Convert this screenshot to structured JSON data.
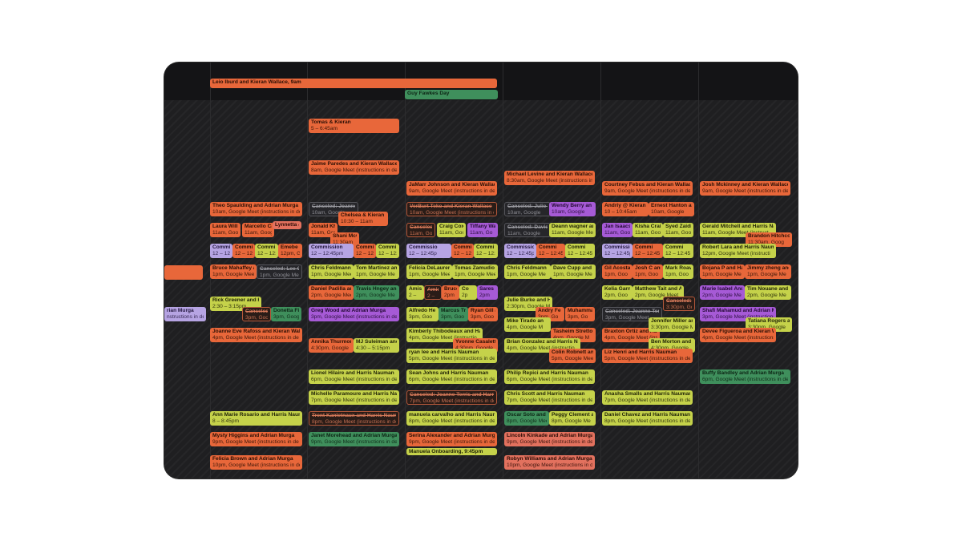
{
  "allday_events": [
    {
      "title": "Leio Iburd and Kieran Wallace, 9am",
      "color": "orange"
    },
    {
      "title": "Guy Fawkes Day",
      "color": "green"
    }
  ],
  "events": [
    {
      "title": "Tomas & Kieran",
      "sub": "5 – 6:45am",
      "color": "orange"
    },
    {
      "title": "Jaime Paredes and Kieran Wallace",
      "sub": "8am, Google Meet (instructions in de",
      "color": "orange"
    },
    {
      "title": "JaMarr Johnson and Kieran Wallace",
      "sub": "9am, Google Meet (instructions in de",
      "color": "orange"
    },
    {
      "title": "Michael Levine and Kieran Wallace",
      "sub": "8:30am, Google Meet (instructions in de",
      "color": "orange"
    },
    {
      "title": "Courtney Febus and Kieran Wallace",
      "sub": "9am, Google Meet (instructions in de",
      "color": "orange"
    },
    {
      "title": "Josh Mckinney and Kieran Wallace",
      "sub": "9am, Google Meet (instructions in de",
      "color": "orange"
    },
    {
      "title": "Theo Spaulding and Adrian Murga",
      "sub": "10am, Google Meet (instructions in de",
      "color": "orange"
    },
    {
      "title": "Canceled: Joanne T",
      "sub": "10am, Google",
      "color": "cancel"
    },
    {
      "title": "Chelsea & Kieran (I",
      "sub": "10:30 – 11am",
      "color": "orange"
    },
    {
      "title": "VerBurt Teko and Kieran Wallace",
      "sub": "10am, Google Meet (instructions in de",
      "color": "cancel-o"
    },
    {
      "title": "Canceled: Julie B",
      "sub": "10am, Google",
      "color": "cancel"
    },
    {
      "title": "Wendy Berry an",
      "sub": "10am, Google",
      "color": "purple"
    },
    {
      "title": "Andriy @ Kieran",
      "sub": "10 – 10:45am",
      "color": "orange"
    },
    {
      "title": "Ernest Hanton an",
      "sub": "10am, Google",
      "color": "orange"
    },
    {
      "title": "Laura Willi",
      "sub": "11am, Goog",
      "color": "orange"
    },
    {
      "title": "Marcello Ca",
      "sub": "11am, Goog",
      "color": "orange"
    },
    {
      "title": "Lynnetta &",
      "sub": "",
      "color": "coral"
    },
    {
      "title": "Jonald Kha",
      "sub": "11am, Goog",
      "color": "orange"
    },
    {
      "title": "Shani McGo",
      "sub": "11:30am",
      "color": "orange"
    },
    {
      "title": "Canceled: ",
      "sub": "11am, Goog",
      "color": "cancel-o"
    },
    {
      "title": "Craig Cox",
      "sub": "11am, Goo",
      "color": "lime"
    },
    {
      "title": "Tiffany Wa",
      "sub": "11am, Go",
      "color": "purple"
    },
    {
      "title": "Canceled: David",
      "sub": "11am, Google",
      "color": "cancel"
    },
    {
      "title": "Deann wagner an",
      "sub": "11am, Google Me",
      "color": "lime"
    },
    {
      "title": "Jan Isaacs",
      "sub": "11am, Goo",
      "color": "purple"
    },
    {
      "title": "Kisha Craig",
      "sub": "11am, Goo",
      "color": "lime"
    },
    {
      "title": "Syed Zaidi",
      "sub": "11am, Goo",
      "color": "lime"
    },
    {
      "title": "Gerald Mitchell and Harris Na",
      "sub": "11am, Google Meet (instruct",
      "color": "lime"
    },
    {
      "title": "Brandon Hitchco",
      "sub": "11:30am, Goog",
      "color": "orange"
    },
    {
      "title": "Commission",
      "sub": "12 – 12:45",
      "color": "lav"
    },
    {
      "title": "Commi",
      "sub": "12 – 12:45",
      "color": "orange"
    },
    {
      "title": "Commi",
      "sub": "12 – 12:45",
      "color": "lime"
    },
    {
      "title": "Emebe",
      "sub": "12pm, G",
      "color": "orange"
    },
    {
      "title": "Commission",
      "sub": "12 – 12:45pm",
      "color": "lav"
    },
    {
      "title": "Commi",
      "sub": "12 – 12:45",
      "color": "orange"
    },
    {
      "title": "Commi",
      "sub": "12 – 12:45",
      "color": "lime"
    },
    {
      "title": "Commissio",
      "sub": "12 – 12:45p",
      "color": "lav"
    },
    {
      "title": "Commi",
      "sub": "12 – 12:45",
      "color": "orange"
    },
    {
      "title": "Commi",
      "sub": "12 – 12:45",
      "color": "lime"
    },
    {
      "title": "Commission",
      "sub": "12 – 12:45pm",
      "color": "lav"
    },
    {
      "title": "Commi",
      "sub": "12 – 12:45",
      "color": "orange"
    },
    {
      "title": "Commi",
      "sub": "12 – 12:45",
      "color": "lime"
    },
    {
      "title": "Commissio",
      "sub": "12 – 12:45p",
      "color": "lav"
    },
    {
      "title": "Commi",
      "sub": "12 – 12:45",
      "color": "orange"
    },
    {
      "title": "Commi",
      "sub": "12 – 12:45",
      "color": "lime"
    },
    {
      "title": "Robert Lara and Harris Nauma",
      "sub": "12pm, Google Meet (instructi",
      "color": "lime"
    },
    {
      "title": "Bruce Mahaffey an",
      "sub": "1pm, Google Meet",
      "color": "orange"
    },
    {
      "title": "Canceled: Lee Gu",
      "sub": "1pm, Google Me",
      "color": "cancel"
    },
    {
      "title": "Chris Feldmann a",
      "sub": "1pm, Google Meet",
      "color": "lime"
    },
    {
      "title": "Tom Martinez an",
      "sub": "1pm, Google Me",
      "color": "lime"
    },
    {
      "title": "Felicia DeLaurent",
      "sub": "1pm, Google Meet",
      "color": "lime"
    },
    {
      "title": "Tomas Zamudio and",
      "sub": "1pm, Google Meet (",
      "color": "lime"
    },
    {
      "title": "Chris Feldmann",
      "sub": "1pm, Google Me",
      "color": "lime"
    },
    {
      "title": "Dave Cupp and K",
      "sub": "1pm, Google Me",
      "color": "lime"
    },
    {
      "title": "Gil Acosta",
      "sub": "1pm, Goo",
      "color": "orange"
    },
    {
      "title": "Josh C and",
      "sub": "1pm, Goo",
      "color": "orange"
    },
    {
      "title": "Mark Roave",
      "sub": "1pm, Goo",
      "color": "lime"
    },
    {
      "title": "Bojana P and Ha",
      "sub": "1pm, Google Me",
      "color": "orange"
    },
    {
      "title": "Jimmy zheng and",
      "sub": "1pm, Google Me",
      "color": "orange"
    },
    {
      "title": "Daniel Padilla an",
      "sub": "2pm, Google Meet",
      "color": "orange"
    },
    {
      "title": "Travis Hngey an",
      "sub": "2pm, Google Me",
      "color": "green"
    },
    {
      "title": "Amiss",
      "sub": "2 –",
      "color": "lime"
    },
    {
      "title": "Amina",
      "sub": "2 –",
      "color": "cancel-o"
    },
    {
      "title": "Bruce",
      "sub": "2pm",
      "color": "orange"
    },
    {
      "title": "Co",
      "sub": "2p",
      "color": "lime"
    },
    {
      "title": "Sares",
      "sub": "2pm",
      "color": "purple"
    },
    {
      "title": "Kelia Garne",
      "sub": "2pm, Goo",
      "color": "lime"
    },
    {
      "title": "Matthew Tait and A",
      "sub": "2pm, Google Meet",
      "color": "lime"
    },
    {
      "title": "Marie Isabel And",
      "sub": "2pm, Google Me",
      "color": "purple"
    },
    {
      "title": "Tim Nouane and",
      "sub": "2pm, Google Me",
      "color": "lime"
    },
    {
      "title": "Rick Greener and H",
      "sub": "2:30 – 3:15pm",
      "color": "lime"
    },
    {
      "title": "Canceled:",
      "sub": "3pm, Goog",
      "color": "cancel-o"
    },
    {
      "title": "Donetta Fi",
      "sub": "3pm, Goog",
      "color": "green"
    },
    {
      "title": "Greg Wood and Adrian Murga",
      "sub": "3pm, Google Meet (instructions in de",
      "color": "purple"
    },
    {
      "title": "Alfredo He",
      "sub": "3pm, Goo",
      "color": "lime"
    },
    {
      "title": "Marcus Tri",
      "sub": "3pm, Goo",
      "color": "green"
    },
    {
      "title": "Ryan Gill a",
      "sub": "3pm, Goo",
      "color": "orange"
    },
    {
      "title": "Julie Burke and Har",
      "sub": "2:30pm, Google Me",
      "color": "lime"
    },
    {
      "title": "Andry Fe",
      "sub": "3pm, Go",
      "color": "orange"
    },
    {
      "title": "Muhamma",
      "sub": "3pm, Go",
      "color": "orange"
    },
    {
      "title": "Canceled: Joanne Terra",
      "sub": "3pm, Google Meet",
      "color": "cancel"
    },
    {
      "title": "Canceled:",
      "sub": "3:30pm, Go",
      "color": "cancel-o"
    },
    {
      "title": "Shafi Mahamud and Adrian Murga",
      "sub": "3pm, Google Meet (instructions in de",
      "color": "purple"
    },
    {
      "title": "Tatiana Rogers a",
      "sub": "3:30pm, Google",
      "color": "lime"
    },
    {
      "title": "rian Murga",
      "sub": "nstructions in de",
      "color": "lav"
    },
    {
      "title": "Joanne Eve Rafoss and Kieran Walla",
      "sub": "4pm, Google Meet (instructions in de",
      "color": "orange"
    },
    {
      "title": "Kimberly Thibodeaux and Har",
      "sub": "4pm, Google Meet (instructio",
      "color": "lime"
    },
    {
      "title": "Mike Tirado an",
      "sub": "4pm, Google M",
      "color": "lime"
    },
    {
      "title": "Tasheim Stretto",
      "sub": "4pm, Google M",
      "color": "orange"
    },
    {
      "title": "Braxton Ortiz and Adrian M",
      "sub": "4pm, Google Meet (instructions",
      "color": "orange"
    },
    {
      "title": "Jennifer Miller an",
      "sub": "3:30pm, Google M",
      "color": "lime"
    },
    {
      "title": "Devee Figueroa and Kieran Walla",
      "sub": "4pm, Google Meet (instructions in de",
      "color": "orange"
    },
    {
      "title": "Annika Thurmond",
      "sub": "4:30pm, Google",
      "color": "orange"
    },
    {
      "title": "MJ Suleiman and",
      "sub": "4:30 – 5:15pm",
      "color": "lime"
    },
    {
      "title": "Yvonne Casalett",
      "sub": "4:30pm, Google",
      "color": "orange"
    },
    {
      "title": "Brian Gonzalez and Harris Nau",
      "sub": "4pm, Google Meet (instructio",
      "color": "lime"
    },
    {
      "title": "Ben Morton and",
      "sub": "4:30pm, Google",
      "color": "lime"
    },
    {
      "title": "ryan lee and Harris Nauman",
      "sub": "5pm, Google Meet (instructions in de",
      "color": "lime"
    },
    {
      "title": "Colin Robnett and",
      "sub": "5pm, Google Meet",
      "color": "orange"
    },
    {
      "title": "Liz Henri and Harris Nauman",
      "sub": "5pm, Google Meet (instructions in de",
      "color": "orange"
    },
    {
      "title": "Lionel Hilaire and Harris Nauman",
      "sub": "6pm, Google Meet (instructions in de",
      "color": "lime"
    },
    {
      "title": "Sean Johns and Harris Nauman",
      "sub": "6pm, Google Meet (instructions in de",
      "color": "lime"
    },
    {
      "title": "Philip Repici and Harris Nauman",
      "sub": "6pm, Google Meet (instructions in de",
      "color": "lime"
    },
    {
      "title": "Buffy Bandley and Adrian Murga",
      "sub": "6pm, Google Meet (instructions in de",
      "color": "green"
    },
    {
      "title": "Michelle Paramoure and Harris Nau",
      "sub": "7pm, Google Meet (instructions in de",
      "color": "lime"
    },
    {
      "title": "Canceled: Joanne Terris and Harris",
      "sub": "7pm, Google Meet (instructions in de",
      "color": "cancel-o"
    },
    {
      "title": "Chris Scott and Harris Nauman",
      "sub": "7pm, Google Meet (instructions in de",
      "color": "lime"
    },
    {
      "title": "Anasha Smalls and Harris Nauman",
      "sub": "7pm, Google Meet (instructions in de",
      "color": "lime"
    },
    {
      "title": "Ann Marie Rosario and Harris Nauma",
      "sub": "8 – 8:45pm",
      "color": "lime"
    },
    {
      "title": "Trent Kanletnaux and Harris Nauma",
      "sub": "8pm, Google Meet (instructions in de",
      "color": "cancel-o"
    },
    {
      "title": "manuela carvalho and Harris Nauman",
      "sub": "8pm, Google Meet (instructions in de",
      "color": "lime"
    },
    {
      "title": "Oscar Soto and Ha",
      "sub": "8pm, Google Meet",
      "color": "green"
    },
    {
      "title": "Peggy Clement a",
      "sub": "8pm, Google Me",
      "color": "lime"
    },
    {
      "title": "Daniel Chavez and Harris Nauman",
      "sub": "8pm, Google Meet (instructions in de",
      "color": "lime"
    },
    {
      "title": "Mysty Higgins and Adrian Murga",
      "sub": "9pm, Google Meet (instructions in de",
      "color": "orange"
    },
    {
      "title": "Janet Morehead and Adrian Murga",
      "sub": "9pm, Google Meet (instructions in de",
      "color": "green"
    },
    {
      "title": "Serina Alexander and Adrian Murga",
      "sub": "9pm, Google Meet (instructions in de",
      "color": "orange"
    },
    {
      "title": "Lincoln Kinkade and Adrian Murga",
      "sub": "9pm, Google Meet (instructions in de",
      "color": "coral"
    },
    {
      "title": "Manuela Onboarding, 9:45pm",
      "sub": "",
      "color": "lime"
    },
    {
      "title": "Felicia Brown and Adrian Murga",
      "sub": "10pm, Google Meet (instructions in de",
      "color": "orange"
    },
    {
      "title": "Robyn Williams and Adrian Murga",
      "sub": "10pm, Google Meet (instructions in de",
      "color": "coral"
    },
    {
      "title": "",
      "sub": "",
      "color": "orange"
    }
  ]
}
